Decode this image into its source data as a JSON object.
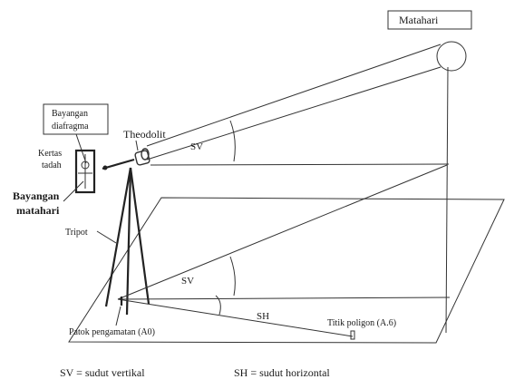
{
  "labels": {
    "sun": "Matahari",
    "diaphragm_image": [
      "Bayangan",
      "diafragma"
    ],
    "theodolite": "Theodolit",
    "receiver_paper": [
      "Kertas",
      "tadah"
    ],
    "sun_image": [
      "Bayangan",
      "matahari"
    ],
    "tripod": "Tripot",
    "sv_upper": "SV",
    "sv_lower": "SV",
    "sh": "SH",
    "observation_peg": "Patok pengamatan (A0)",
    "polygon_point": "Titik poligon (A.6)"
  },
  "legend": {
    "sv": "SV = sudut vertikal",
    "sh": "SH = sudut horizontal"
  }
}
